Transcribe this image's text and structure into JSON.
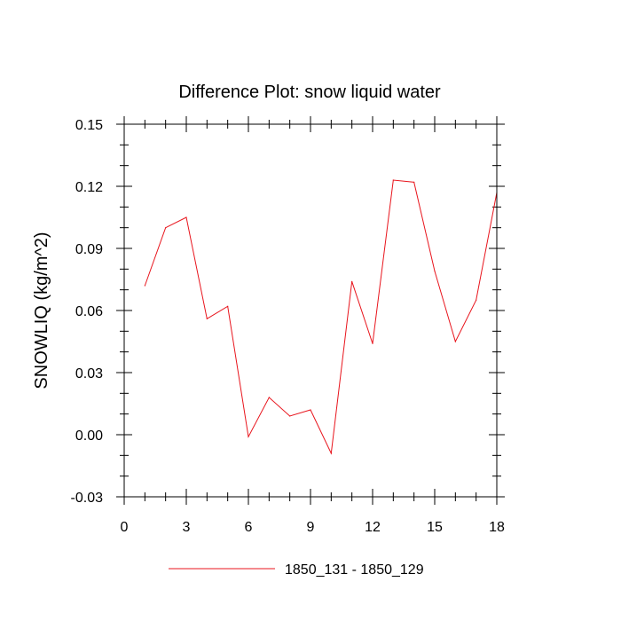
{
  "chart_data": {
    "type": "line",
    "title": "Difference Plot: snow liquid water",
    "xlabel": "",
    "ylabel": "SNOWLIQ  (kg/m^2)",
    "xlim": [
      0,
      18
    ],
    "ylim": [
      -0.03,
      0.15
    ],
    "x_ticks": [
      0,
      3,
      6,
      9,
      12,
      15,
      18
    ],
    "x_tick_labels": [
      "0",
      "3",
      "6",
      "9",
      "12",
      "15",
      "18"
    ],
    "y_ticks": [
      -0.03,
      0.0,
      0.03,
      0.06,
      0.09,
      0.12,
      0.15
    ],
    "y_tick_labels": [
      "-0.03",
      "0.00",
      "0.03",
      "0.06",
      "0.09",
      "0.12",
      "0.15"
    ],
    "grid": false,
    "legend_position": "bottom-center",
    "series": [
      {
        "name": "1850_131 - 1850_129",
        "color": "#e8141c",
        "x": [
          1,
          2,
          3,
          4,
          5,
          6,
          7,
          8,
          9,
          10,
          11,
          12,
          13,
          14,
          15,
          16,
          17,
          18
        ],
        "values": [
          0.072,
          0.1,
          0.105,
          0.056,
          0.062,
          -0.001,
          0.018,
          0.009,
          0.012,
          -0.009,
          0.074,
          0.044,
          0.123,
          0.122,
          0.079,
          0.045,
          0.065,
          0.117
        ]
      }
    ]
  }
}
